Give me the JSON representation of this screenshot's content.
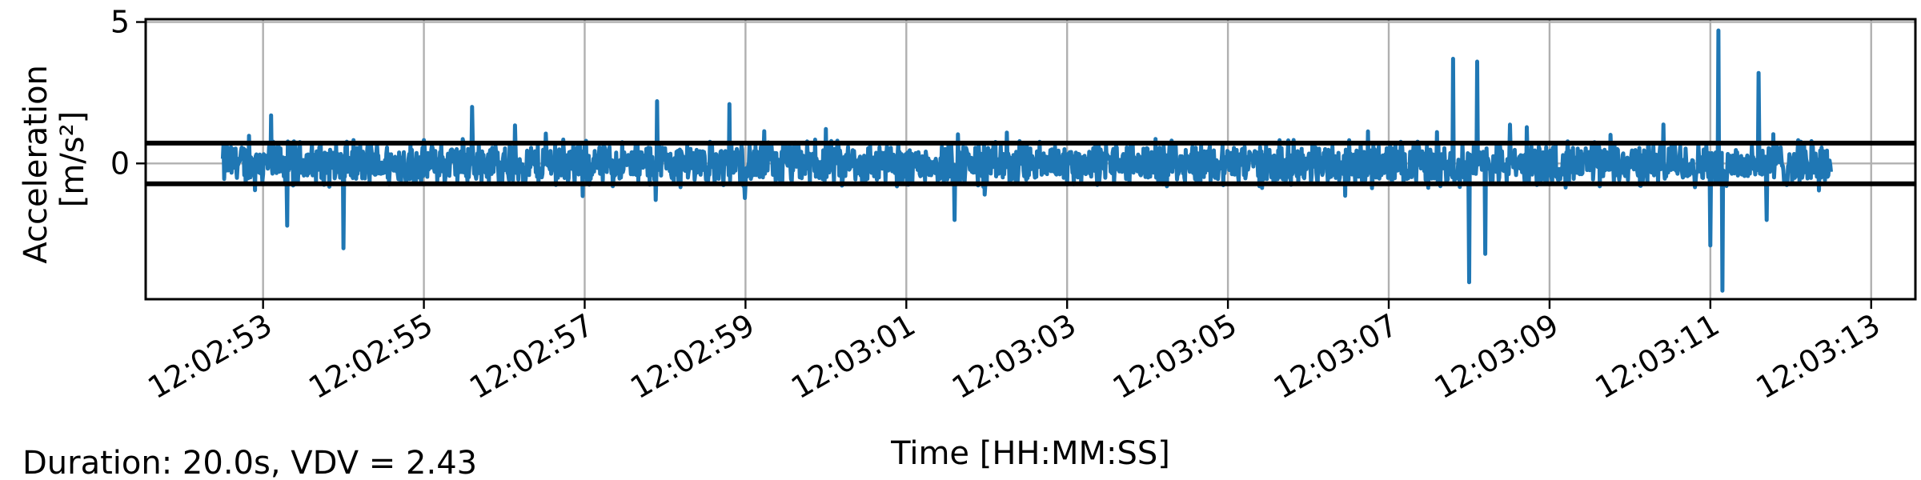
{
  "chart_data": {
    "type": "line",
    "title": "",
    "xlabel": "Time [HH:MM:SS]",
    "ylabel_line1": "Acceleration",
    "ylabel_line2": "[m/s²]",
    "x_start": "12:02:51.5",
    "x_end": "12:03:13.5",
    "xlim": [
      "12:02:51.54",
      "12:03:13.55"
    ],
    "ylim": [
      -4.8,
      5.1
    ],
    "x_ticks": [
      "12:02:53",
      "12:02:55",
      "12:02:57",
      "12:02:59",
      "12:03:01",
      "12:03:03",
      "12:03:05",
      "12:03:07",
      "12:03:09",
      "12:03:11",
      "12:03:13"
    ],
    "y_ticks": [
      0,
      5
    ],
    "y_tick_labels": [
      "0",
      "5"
    ],
    "grid": true,
    "legend": "none",
    "series": [
      {
        "color": "#1f77b4",
        "x_range": [
          "12:02:52.5",
          "12:03:12.5"
        ],
        "summary": {
          "typical_amplitude": 0.9,
          "max": 4.7,
          "min": -4.5
        },
        "peaks": [
          {
            "x": "12:02:53.1",
            "y": 1.7
          },
          {
            "x": "12:02:53.3",
            "y": -2.2
          },
          {
            "x": "12:02:54.0",
            "y": -3.0
          },
          {
            "x": "12:02:55.6",
            "y": 2.0
          },
          {
            "x": "12:02:57.9",
            "y": 2.2
          },
          {
            "x": "12:02:58.8",
            "y": 2.1
          },
          {
            "x": "12:03:01.6",
            "y": -2.0
          },
          {
            "x": "12:03:07.8",
            "y": 3.7
          },
          {
            "x": "12:03:08.0",
            "y": -4.2
          },
          {
            "x": "12:03:08.1",
            "y": 3.6
          },
          {
            "x": "12:03:08.2",
            "y": -3.2
          },
          {
            "x": "12:03:11.0",
            "y": -2.9
          },
          {
            "x": "12:03:11.1",
            "y": 4.7
          },
          {
            "x": "12:03:11.15",
            "y": -4.5
          },
          {
            "x": "12:03:11.6",
            "y": 3.2
          },
          {
            "x": "12:03:11.7",
            "y": -2.0
          }
        ]
      }
    ],
    "reference_lines": [
      {
        "y": 0.72,
        "color": "#000000"
      },
      {
        "y": -0.72,
        "color": "#000000"
      }
    ]
  },
  "footer": {
    "stats": "Duration: 20.0s, VDV = 2.43"
  }
}
